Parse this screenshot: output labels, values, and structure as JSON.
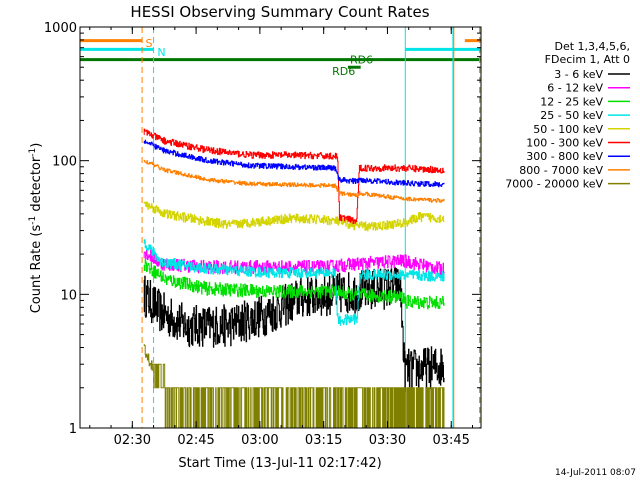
{
  "chart_data": {
    "type": "line",
    "title": "HESSI Observing Summary Count Rates",
    "xlabel": "Start Time (13-Jul-11 02:17:42)",
    "ylabel_main": "Count Rate (s",
    "ylabel_sup1": "-1",
    "ylabel_mid": " detector",
    "ylabel_sup2": "-1",
    "ylabel_end": ")",
    "x_unit": "minutes since 02:17:42 UT",
    "xlim": [
      0,
      94.3
    ],
    "ylim": [
      1,
      1000
    ],
    "y_scale": "log",
    "x_ticks": [
      {
        "value": 12.3,
        "label": "02:30"
      },
      {
        "value": 27.3,
        "label": "02:45"
      },
      {
        "value": 42.3,
        "label": "03:00"
      },
      {
        "value": 57.3,
        "label": "03:15"
      },
      {
        "value": 72.3,
        "label": "03:30"
      },
      {
        "value": 87.3,
        "label": "03:45"
      }
    ],
    "y_ticks": [
      {
        "value": 1,
        "label": "1"
      },
      {
        "value": 10,
        "label": "10"
      },
      {
        "value": 100,
        "label": "100"
      },
      {
        "value": 1000,
        "label": "1000"
      }
    ],
    "legend_header": [
      "Det 1,3,4,5,6,",
      "FDecim 1, Att 0"
    ],
    "legend_placement": "right",
    "footer_timestamp": "14-Jul-2011 08:07",
    "annotations": [
      {
        "label": "S",
        "x": 15.4,
        "y": 760,
        "color": "#ff8000"
      },
      {
        "label": "N",
        "x": 18.2,
        "y": 650,
        "color": "#00e5e5"
      },
      {
        "label": "RD6",
        "x": 59.3,
        "y": 470,
        "color": "#007700"
      },
      {
        "label": "RD6",
        "x": 63.5,
        "y": 570,
        "color": "#007700"
      }
    ],
    "flags": [
      {
        "name": "saa",
        "color": "#ff8000",
        "y": 790,
        "segments": [
          [
            0,
            14.7
          ],
          [
            90.5,
            94.3
          ]
        ]
      },
      {
        "name": "night",
        "color": "#00e5e5",
        "y": 680,
        "segments": [
          [
            0,
            17.3
          ],
          [
            76.5,
            94.3
          ]
        ]
      },
      {
        "name": "decimation",
        "color": "#007700",
        "y": 570,
        "segments": [
          [
            0,
            94.3
          ]
        ]
      },
      {
        "name": "rd6",
        "color": "#007700",
        "y": 500,
        "segments": [
          [
            63.0,
            66.0
          ]
        ]
      }
    ],
    "vlines": [
      {
        "x": 14.6,
        "color": "#ff8000",
        "style": "dashed"
      },
      {
        "x": 17.3,
        "color": "#00e5e5",
        "style": "dashed"
      },
      {
        "x": 76.5,
        "color": "#00e5e5",
        "style": "solid"
      },
      {
        "x": 87.7,
        "color": "#00e5e5",
        "style": "solid"
      },
      {
        "x": 87.9,
        "color": "#ff8000",
        "style": "solid"
      },
      {
        "x": 94.0,
        "color": "#00e5e5",
        "style": "dashed"
      },
      {
        "x": 94.0,
        "color": "#ff8000",
        "style": "dashed"
      }
    ],
    "series": [
      {
        "name": "3 - 6 keV",
        "color": "#000000",
        "noise": 0.16,
        "points": [
          [
            15.0,
            10.0
          ],
          [
            19.0,
            7.3
          ],
          [
            25.0,
            5.8
          ],
          [
            35.0,
            5.8
          ],
          [
            45.0,
            7.3
          ],
          [
            52.0,
            9.5
          ],
          [
            62.0,
            10.2
          ],
          [
            72.0,
            11.2
          ],
          [
            75.3,
            11.5
          ],
          [
            76.3,
            2.7
          ],
          [
            85.6,
            2.9
          ]
        ]
      },
      {
        "name": "6 - 12 keV",
        "color": "#ff00ff",
        "noise": 0.05,
        "points": [
          [
            15.0,
            21.0
          ],
          [
            19.0,
            17.0
          ],
          [
            30.0,
            16.0
          ],
          [
            45.0,
            16.0
          ],
          [
            58.0,
            16.0
          ],
          [
            64.0,
            16.8
          ],
          [
            76.0,
            17.8
          ],
          [
            85.6,
            15.3
          ]
        ]
      },
      {
        "name": "12 - 25 keV",
        "color": "#00e000",
        "noise": 0.05,
        "points": [
          [
            15.0,
            17.0
          ],
          [
            20.0,
            13.0
          ],
          [
            30.0,
            11.0
          ],
          [
            45.0,
            10.5
          ],
          [
            60.0,
            10.5
          ],
          [
            63.0,
            10.0
          ],
          [
            68.0,
            9.8
          ],
          [
            76.0,
            9.5
          ],
          [
            76.6,
            8.8
          ],
          [
            85.6,
            8.6
          ]
        ]
      },
      {
        "name": "25 - 50 keV",
        "color": "#00e5e5",
        "noise": 0.04,
        "points": [
          [
            15.0,
            25.0
          ],
          [
            19.0,
            17.5
          ],
          [
            30.0,
            15.5
          ],
          [
            45.0,
            14.5
          ],
          [
            60.0,
            14.5
          ],
          [
            60.6,
            6.3
          ],
          [
            65.2,
            6.6
          ],
          [
            65.8,
            14.0
          ],
          [
            76.0,
            14.0
          ],
          [
            85.6,
            13.5
          ]
        ]
      },
      {
        "name": "50 - 100 keV",
        "color": "#d4d400",
        "noise": 0.035,
        "points": [
          [
            15.0,
            48.0
          ],
          [
            20.0,
            40.0
          ],
          [
            30.0,
            35.0
          ],
          [
            35.0,
            33.0
          ],
          [
            42.0,
            35.0
          ],
          [
            50.0,
            37.0
          ],
          [
            58.0,
            36.0
          ],
          [
            61.0,
            35.0
          ],
          [
            64.0,
            33.0
          ],
          [
            68.0,
            32.0
          ],
          [
            76.0,
            34.0
          ],
          [
            80.0,
            38.0
          ],
          [
            85.6,
            37.0
          ]
        ]
      },
      {
        "name": "100 - 300 keV",
        "color": "#ff0000",
        "noise": 0.025,
        "points": [
          [
            15.0,
            165.0
          ],
          [
            20.0,
            140.0
          ],
          [
            30.0,
            120.0
          ],
          [
            40.0,
            110.0
          ],
          [
            50.0,
            110.0
          ],
          [
            60.5,
            108.0
          ],
          [
            61.0,
            38.0
          ],
          [
            65.0,
            35.0
          ],
          [
            65.7,
            88.0
          ],
          [
            76.0,
            88.0
          ],
          [
            85.6,
            85.0
          ]
        ]
      },
      {
        "name": "300 - 800 keV",
        "color": "#0000ff",
        "noise": 0.02,
        "points": [
          [
            15.0,
            140.0
          ],
          [
            20.0,
            118.0
          ],
          [
            30.0,
            100.0
          ],
          [
            40.0,
            92.0
          ],
          [
            50.0,
            90.0
          ],
          [
            60.0,
            88.0
          ],
          [
            61.0,
            72.0
          ],
          [
            65.0,
            70.0
          ],
          [
            65.7,
            72.0
          ],
          [
            76.0,
            68.0
          ],
          [
            85.6,
            66.0
          ]
        ]
      },
      {
        "name": "800 - 7000 keV",
        "color": "#ff8000",
        "noise": 0.015,
        "points": [
          [
            15.0,
            100.0
          ],
          [
            20.0,
            85.0
          ],
          [
            30.0,
            72.0
          ],
          [
            40.0,
            67.0
          ],
          [
            50.0,
            66.0
          ],
          [
            60.0,
            65.0
          ],
          [
            61.0,
            57.0
          ],
          [
            65.0,
            55.0
          ],
          [
            65.7,
            57.0
          ],
          [
            76.0,
            52.0
          ],
          [
            85.6,
            50.0
          ]
        ]
      },
      {
        "name": "7000 - 20000 keV",
        "color": "#808000",
        "noise": 0.0,
        "quantized": true,
        "points": [
          [
            15.0,
            3.7
          ],
          [
            18.0,
            2.6
          ],
          [
            20.0,
            2.0
          ],
          [
            85.6,
            2.0
          ]
        ]
      }
    ]
  }
}
